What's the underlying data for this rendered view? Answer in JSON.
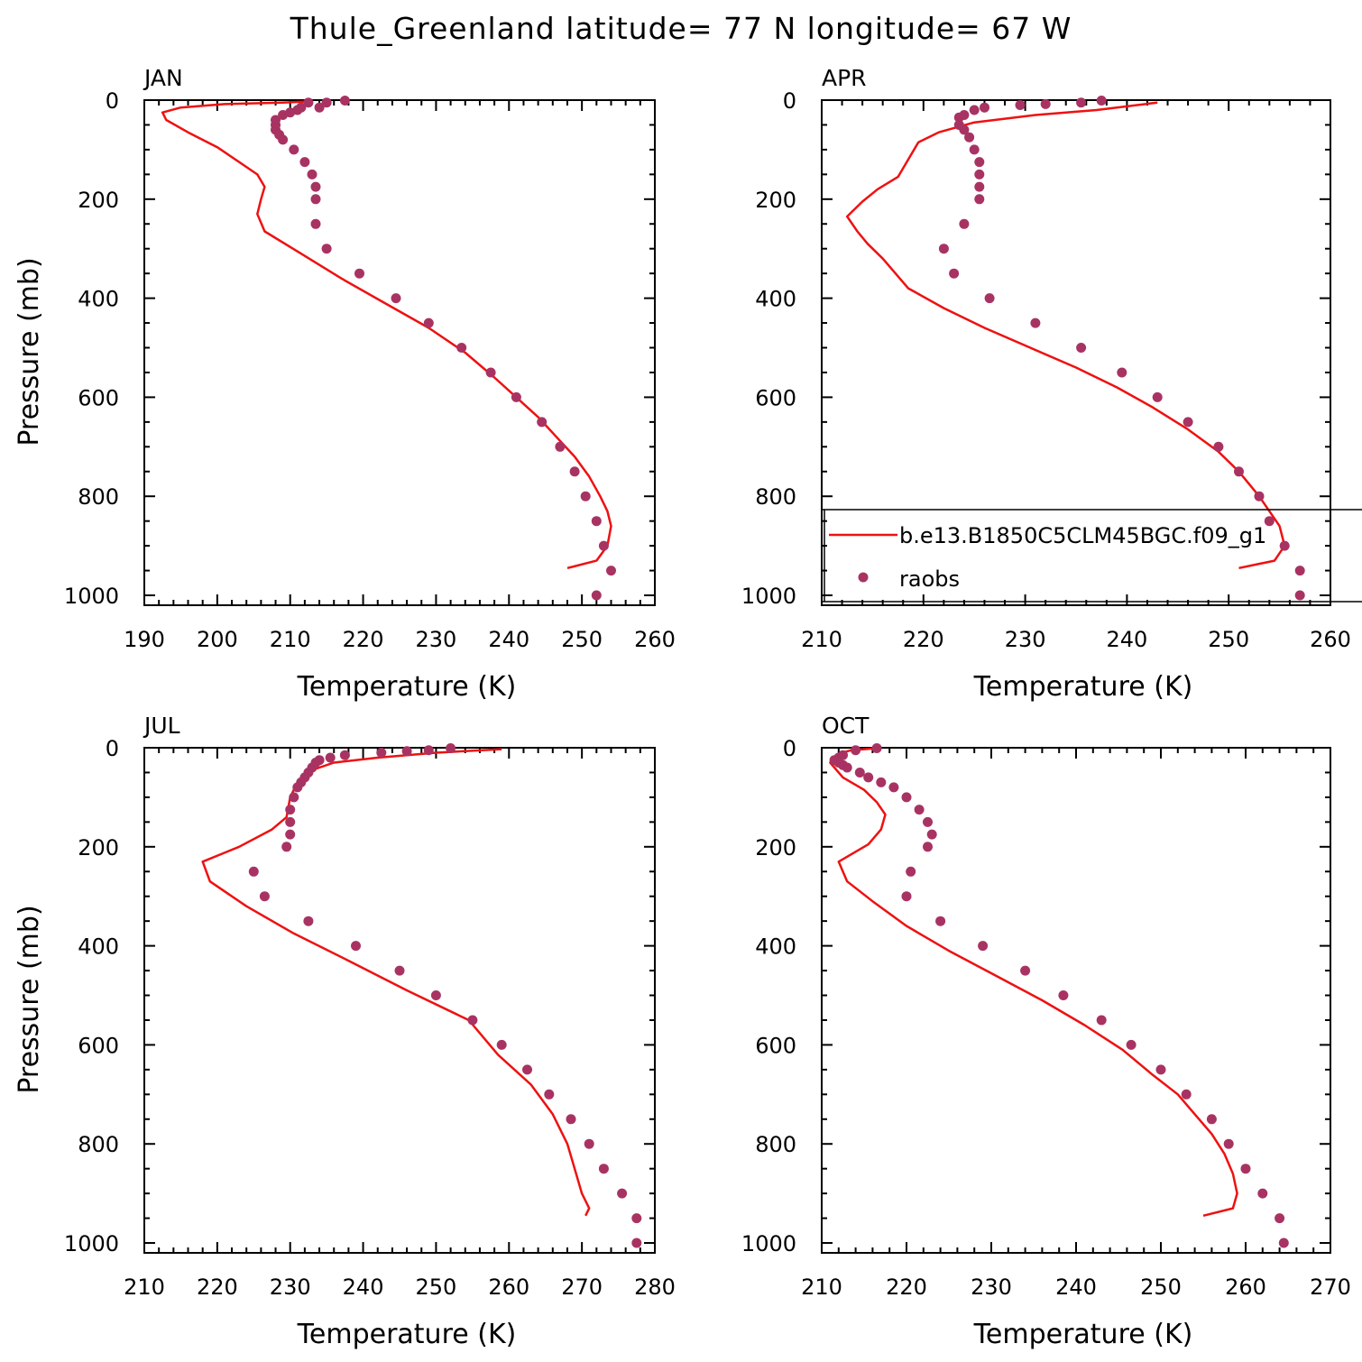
{
  "title": "Thule_Greenland  latitude= 77 N longitude= 67 W",
  "colors": {
    "model": "#ee1111",
    "obs": "#a83363",
    "axis": "#000000"
  },
  "chart_data": [
    {
      "type": "line",
      "panel_label": "JAN",
      "xlabel": "Temperature (K)",
      "ylabel": "Pressure (mb)",
      "xlim": [
        190,
        260
      ],
      "ylim": [
        1020,
        0
      ],
      "xticks": [
        190,
        200,
        210,
        220,
        230,
        240,
        250,
        260
      ],
      "yticks": [
        0,
        200,
        400,
        600,
        800,
        1000
      ],
      "series": [
        {
          "name": "b.e13.B1850C5CLM45BGC.f09_g1",
          "style": "line",
          "points": [
            [
              248,
              945
            ],
            [
              252,
              930
            ],
            [
              253.5,
              900
            ],
            [
              254,
              860
            ],
            [
              253.5,
              830
            ],
            [
              252.5,
              800
            ],
            [
              251,
              760
            ],
            [
              249,
              720
            ],
            [
              246.5,
              680
            ],
            [
              244,
              640
            ],
            [
              241,
              600
            ],
            [
              238,
              560
            ],
            [
              234,
              510
            ],
            [
              229,
              460
            ],
            [
              223,
              410
            ],
            [
              217,
              360
            ],
            [
              211.5,
              310
            ],
            [
              206.5,
              265
            ],
            [
              205.5,
              230
            ],
            [
              206,
              200
            ],
            [
              206.5,
              175
            ],
            [
              205.5,
              150
            ],
            [
              203,
              125
            ],
            [
              200,
              95
            ],
            [
              196,
              65
            ],
            [
              193,
              40
            ],
            [
              192.5,
              25
            ],
            [
              195,
              15
            ],
            [
              201,
              8
            ],
            [
              209,
              5
            ],
            [
              212,
              3
            ]
          ]
        },
        {
          "name": "raobs",
          "style": "marker",
          "points": [
            [
              252,
              1000
            ],
            [
              254,
              950
            ],
            [
              253,
              900
            ],
            [
              252,
              850
            ],
            [
              250.5,
              800
            ],
            [
              249,
              750
            ],
            [
              247,
              700
            ],
            [
              244.5,
              650
            ],
            [
              241,
              600
            ],
            [
              237.5,
              550
            ],
            [
              233.5,
              500
            ],
            [
              229,
              450
            ],
            [
              224.5,
              400
            ],
            [
              219.5,
              350
            ],
            [
              215,
              300
            ],
            [
              213.5,
              250
            ],
            [
              213.5,
              200
            ],
            [
              213.5,
              175
            ],
            [
              213,
              150
            ],
            [
              212,
              125
            ],
            [
              210.5,
              100
            ],
            [
              209,
              80
            ],
            [
              208.5,
              70
            ],
            [
              208,
              60
            ],
            [
              208,
              50
            ],
            [
              208,
              40
            ],
            [
              209,
              30
            ],
            [
              210,
              25
            ],
            [
              211,
              20
            ],
            [
              211.5,
              15
            ],
            [
              214,
              15
            ],
            [
              212.5,
              5
            ],
            [
              215,
              5
            ],
            [
              217.5,
              1
            ]
          ]
        }
      ]
    },
    {
      "type": "line",
      "panel_label": "APR",
      "xlabel": "Temperature (K)",
      "ylabel": "",
      "xlim": [
        210,
        260
      ],
      "ylim": [
        1020,
        0
      ],
      "xticks": [
        210,
        220,
        230,
        240,
        250,
        260
      ],
      "yticks": [
        0,
        200,
        400,
        600,
        800,
        1000
      ],
      "legend": {
        "placement": "lower-right",
        "entries": [
          {
            "label": "b.e13.B1850C5CLM45BGC.f09_g1",
            "style": "line"
          },
          {
            "label": "raobs",
            "style": "marker"
          }
        ]
      },
      "series": [
        {
          "name": "b.e13.B1850C5CLM45BGC.f09_g1",
          "style": "line",
          "points": [
            [
              251,
              945
            ],
            [
              254.5,
              930
            ],
            [
              255.5,
              900
            ],
            [
              255,
              860
            ],
            [
              254,
              830
            ],
            [
              253,
              800
            ],
            [
              251,
              750
            ],
            [
              249,
              710
            ],
            [
              246,
              665
            ],
            [
              242.5,
              620
            ],
            [
              239,
              580
            ],
            [
              235,
              540
            ],
            [
              230.5,
              500
            ],
            [
              226,
              460
            ],
            [
              222,
              420
            ],
            [
              218.5,
              380
            ],
            [
              216,
              320
            ],
            [
              214.5,
              290
            ],
            [
              213.5,
              265
            ],
            [
              212.5,
              235
            ],
            [
              214,
              205
            ],
            [
              215.5,
              180
            ],
            [
              217.5,
              155
            ],
            [
              218.5,
              120
            ],
            [
              219.5,
              85
            ],
            [
              221.5,
              65
            ],
            [
              225,
              45
            ],
            [
              231,
              30
            ],
            [
              237,
              20
            ],
            [
              243,
              5
            ]
          ]
        },
        {
          "name": "raobs",
          "style": "marker",
          "points": [
            [
              257,
              1000
            ],
            [
              257,
              950
            ],
            [
              255.5,
              900
            ],
            [
              254,
              850
            ],
            [
              253,
              800
            ],
            [
              251,
              750
            ],
            [
              249,
              700
            ],
            [
              246,
              650
            ],
            [
              243,
              600
            ],
            [
              239.5,
              550
            ],
            [
              235.5,
              500
            ],
            [
              231,
              450
            ],
            [
              226.5,
              400
            ],
            [
              223,
              350
            ],
            [
              222,
              300
            ],
            [
              224,
              250
            ],
            [
              225.5,
              200
            ],
            [
              225.5,
              175
            ],
            [
              225.5,
              150
            ],
            [
              225.5,
              125
            ],
            [
              225,
              100
            ],
            [
              224.5,
              75
            ],
            [
              224,
              60
            ],
            [
              223.5,
              50
            ],
            [
              223.5,
              35
            ],
            [
              224,
              30
            ],
            [
              225,
              20
            ],
            [
              226,
              15
            ],
            [
              229.5,
              10
            ],
            [
              232,
              8
            ],
            [
              235.5,
              5
            ],
            [
              237.5,
              1
            ]
          ]
        }
      ]
    },
    {
      "type": "line",
      "panel_label": "JUL",
      "xlabel": "Temperature (K)",
      "ylabel": "Pressure (mb)",
      "xlim": [
        210,
        280
      ],
      "ylim": [
        1020,
        0
      ],
      "xticks": [
        210,
        220,
        230,
        240,
        250,
        260,
        270,
        280
      ],
      "yticks": [
        0,
        200,
        400,
        600,
        800,
        1000
      ],
      "series": [
        {
          "name": "b.e13.B1850C5CLM45BGC.f09_g1",
          "style": "line",
          "points": [
            [
              270.5,
              945
            ],
            [
              271,
              930
            ],
            [
              270,
              900
            ],
            [
              269,
              850
            ],
            [
              268,
              800
            ],
            [
              266,
              740
            ],
            [
              263,
              680
            ],
            [
              258.5,
              620
            ],
            [
              254.5,
              550
            ],
            [
              246,
              490
            ],
            [
              238,
              430
            ],
            [
              230.5,
              375
            ],
            [
              224,
              320
            ],
            [
              219,
              270
            ],
            [
              218,
              230
            ],
            [
              223,
              200
            ],
            [
              227.5,
              165
            ],
            [
              229.5,
              140
            ],
            [
              230,
              100
            ],
            [
              231,
              70
            ],
            [
              233,
              45
            ],
            [
              236,
              30
            ],
            [
              242,
              20
            ],
            [
              250,
              10
            ],
            [
              259,
              3
            ]
          ]
        },
        {
          "name": "raobs",
          "style": "marker",
          "points": [
            [
              277.5,
              1000
            ],
            [
              277.5,
              950
            ],
            [
              275.5,
              900
            ],
            [
              273,
              850
            ],
            [
              271,
              800
            ],
            [
              268.5,
              750
            ],
            [
              265.5,
              700
            ],
            [
              262.5,
              650
            ],
            [
              259,
              600
            ],
            [
              255,
              550
            ],
            [
              250,
              500
            ],
            [
              245,
              450
            ],
            [
              239,
              400
            ],
            [
              232.5,
              350
            ],
            [
              226.5,
              300
            ],
            [
              225,
              250
            ],
            [
              229.5,
              200
            ],
            [
              230,
              175
            ],
            [
              230,
              150
            ],
            [
              230,
              125
            ],
            [
              230.5,
              100
            ],
            [
              231,
              80
            ],
            [
              231.5,
              70
            ],
            [
              232,
              60
            ],
            [
              232.5,
              50
            ],
            [
              233,
              40
            ],
            [
              233.5,
              30
            ],
            [
              234,
              25
            ],
            [
              235.5,
              20
            ],
            [
              237.5,
              15
            ],
            [
              242.5,
              10
            ],
            [
              246,
              7
            ],
            [
              249,
              5
            ],
            [
              252,
              1
            ]
          ]
        }
      ]
    },
    {
      "type": "line",
      "panel_label": "OCT",
      "xlabel": "Temperature (K)",
      "ylabel": "",
      "xlim": [
        210,
        270
      ],
      "ylim": [
        1020,
        0
      ],
      "xticks": [
        210,
        220,
        230,
        240,
        250,
        260,
        270
      ],
      "yticks": [
        0,
        200,
        400,
        600,
        800,
        1000
      ],
      "series": [
        {
          "name": "b.e13.B1850C5CLM45BGC.f09_g1",
          "style": "line",
          "points": [
            [
              255,
              945
            ],
            [
              258.5,
              930
            ],
            [
              259,
              900
            ],
            [
              258.5,
              860
            ],
            [
              257.5,
              820
            ],
            [
              256,
              780
            ],
            [
              254,
              740
            ],
            [
              252,
              700
            ],
            [
              249,
              660
            ],
            [
              245.5,
              610
            ],
            [
              241,
              560
            ],
            [
              236,
              510
            ],
            [
              230.5,
              460
            ],
            [
              225,
              410
            ],
            [
              220,
              360
            ],
            [
              216,
              310
            ],
            [
              213,
              270
            ],
            [
              212,
              230
            ],
            [
              214,
              210
            ],
            [
              215.5,
              195
            ],
            [
              217,
              165
            ],
            [
              217.5,
              135
            ],
            [
              216.5,
              110
            ],
            [
              215,
              85
            ],
            [
              212.5,
              60
            ],
            [
              211,
              30
            ],
            [
              212,
              12
            ],
            [
              213.5,
              5
            ],
            [
              216.5,
              1
            ]
          ]
        },
        {
          "name": "raobs",
          "style": "marker",
          "points": [
            [
              264.5,
              1000
            ],
            [
              264,
              950
            ],
            [
              262,
              900
            ],
            [
              260,
              850
            ],
            [
              258,
              800
            ],
            [
              256,
              750
            ],
            [
              253,
              700
            ],
            [
              250,
              650
            ],
            [
              246.5,
              600
            ],
            [
              243,
              550
            ],
            [
              238.5,
              500
            ],
            [
              234,
              450
            ],
            [
              229,
              400
            ],
            [
              224,
              350
            ],
            [
              220,
              300
            ],
            [
              220.5,
              250
            ],
            [
              222.5,
              200
            ],
            [
              223,
              175
            ],
            [
              222.5,
              150
            ],
            [
              221.5,
              125
            ],
            [
              220,
              100
            ],
            [
              218.5,
              80
            ],
            [
              217,
              70
            ],
            [
              215.5,
              60
            ],
            [
              214.5,
              50
            ],
            [
              213,
              40
            ],
            [
              212.5,
              35
            ],
            [
              212,
              30
            ],
            [
              211.5,
              25
            ],
            [
              212,
              20
            ],
            [
              212.5,
              15
            ],
            [
              214,
              5
            ],
            [
              216.5,
              1
            ]
          ]
        }
      ]
    }
  ]
}
